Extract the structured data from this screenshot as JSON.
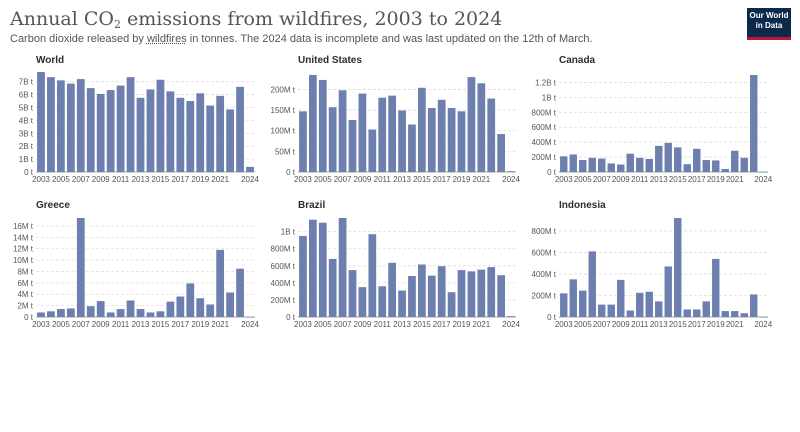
{
  "header": {
    "title_pre": "Annual CO",
    "title_sub": "2",
    "title_post": " emissions from wildfires, 2003 to 2024",
    "subtitle_pre": "Carbon dioxide released by ",
    "subtitle_link": "wildfires",
    "subtitle_post": " in tonnes. The 2024 data is incomplete and was last updated on the 12th of March.",
    "logo_line1": "Our World",
    "logo_line2": "in Data"
  },
  "colors": {
    "bar": "#6d7fae",
    "grid": "#dddddd",
    "axis": "#888888"
  },
  "chart_data": [
    {
      "type": "bar",
      "title": "World",
      "categories": [
        "2003",
        "2004",
        "2005",
        "2006",
        "2007",
        "2008",
        "2009",
        "2010",
        "2011",
        "2012",
        "2013",
        "2014",
        "2015",
        "2016",
        "2017",
        "2018",
        "2019",
        "2020",
        "2021",
        "2022",
        "2023",
        "2024"
      ],
      "values": [
        7750000000.0,
        7350000000.0,
        7100000000.0,
        6850000000.0,
        7200000000.0,
        6500000000.0,
        6050000000.0,
        6350000000.0,
        6700000000.0,
        7350000000.0,
        5750000000.0,
        6400000000.0,
        7150000000.0,
        6250000000.0,
        5750000000.0,
        5500000000.0,
        6100000000.0,
        5150000000.0,
        5900000000.0,
        4850000000.0,
        6600000000.0,
        400000000.0
      ],
      "yticks": [
        0,
        1000000000.0,
        2000000000.0,
        3000000000.0,
        4000000000.0,
        5000000000.0,
        6000000000.0,
        7000000000.0
      ],
      "ytick_labels": [
        "0 t",
        "1B t",
        "2B t",
        "3B t",
        "4B t",
        "5B t",
        "6B t",
        "7B t"
      ],
      "ylim": [
        0,
        7750000000.0
      ],
      "xtick_labels": [
        "2003",
        "2005",
        "2007",
        "2009",
        "2011",
        "2013",
        "2015",
        "2017",
        "2019",
        "2021",
        "2024"
      ]
    },
    {
      "type": "bar",
      "title": "United States",
      "categories": [
        "2003",
        "2004",
        "2005",
        "2006",
        "2007",
        "2008",
        "2009",
        "2010",
        "2011",
        "2012",
        "2013",
        "2014",
        "2015",
        "2016",
        "2017",
        "2018",
        "2019",
        "2020",
        "2021",
        "2022",
        "2023",
        "2024"
      ],
      "values": [
        147000000.0,
        235000000.0,
        223000000.0,
        157000000.0,
        198000000.0,
        126000000.0,
        190000000.0,
        103000000.0,
        180000000.0,
        185000000.0,
        149000000.0,
        115000000.0,
        204000000.0,
        155000000.0,
        175000000.0,
        155000000.0,
        147000000.0,
        230000000.0,
        215000000.0,
        178000000.0,
        92000000.0,
        2000000.0
      ],
      "yticks": [
        0,
        50000000.0,
        100000000.0,
        150000000.0,
        200000000.0
      ],
      "ytick_labels": [
        "0 t",
        "50M t",
        "100M t",
        "150M t",
        "200M t"
      ],
      "ylim": [
        0,
        235000000.0
      ],
      "xtick_labels": [
        "2003",
        "2005",
        "2007",
        "2009",
        "2011",
        "2013",
        "2015",
        "2017",
        "2019",
        "2021",
        "2024"
      ]
    },
    {
      "type": "bar",
      "title": "Canada",
      "categories": [
        "2003",
        "2004",
        "2005",
        "2006",
        "2007",
        "2008",
        "2009",
        "2010",
        "2011",
        "2012",
        "2013",
        "2014",
        "2015",
        "2016",
        "2017",
        "2018",
        "2019",
        "2020",
        "2021",
        "2022",
        "2023",
        "2024"
      ],
      "values": [
        210000000.0,
        235000000.0,
        160000000.0,
        190000000.0,
        180000000.0,
        115000000.0,
        100000000.0,
        245000000.0,
        190000000.0,
        175000000.0,
        350000000.0,
        390000000.0,
        330000000.0,
        105000000.0,
        310000000.0,
        160000000.0,
        155000000.0,
        40000000.0,
        285000000.0,
        190000000.0,
        1300000000.0,
        1000000.0
      ],
      "yticks": [
        0,
        200000000.0,
        400000000.0,
        600000000.0,
        800000000.0,
        1000000000.0,
        1200000000.0
      ],
      "ytick_labels": [
        "0 t",
        "200M t",
        "400M t",
        "600M t",
        "800M t",
        "1B t",
        "1.2B t"
      ],
      "ylim": [
        0,
        1300000000.0
      ],
      "xtick_labels": [
        "2003",
        "2005",
        "2007",
        "2009",
        "2011",
        "2013",
        "2015",
        "2017",
        "2019",
        "2021",
        "2024"
      ]
    },
    {
      "type": "bar",
      "title": "Greece",
      "categories": [
        "2003",
        "2004",
        "2005",
        "2006",
        "2007",
        "2008",
        "2009",
        "2010",
        "2011",
        "2012",
        "2013",
        "2014",
        "2015",
        "2016",
        "2017",
        "2018",
        "2019",
        "2020",
        "2021",
        "2022",
        "2023",
        "2024"
      ],
      "values": [
        800000.0,
        1000000.0,
        1400000.0,
        1500000.0,
        17400000.0,
        1900000.0,
        2800000.0,
        800000.0,
        1400000.0,
        2900000.0,
        1400000.0,
        800000.0,
        1000000.0,
        2700000.0,
        3600000.0,
        5900000.0,
        3300000.0,
        2200000.0,
        11800000.0,
        4300000.0,
        8500000.0,
        10000.0
      ],
      "yticks": [
        0,
        2000000.0,
        4000000.0,
        6000000.0,
        8000000.0,
        10000000.0,
        12000000.0,
        14000000.0,
        16000000.0
      ],
      "ytick_labels": [
        "0 t",
        "2M t",
        "4M t",
        "6M t",
        "8M t",
        "10M t",
        "12M t",
        "14M t",
        "16M t"
      ],
      "ylim": [
        0,
        17400000.0
      ],
      "xtick_labels": [
        "2003",
        "2005",
        "2007",
        "2009",
        "2011",
        "2013",
        "2015",
        "2017",
        "2019",
        "2021",
        "2024"
      ]
    },
    {
      "type": "bar",
      "title": "Brazil",
      "categories": [
        "2003",
        "2004",
        "2005",
        "2006",
        "2007",
        "2008",
        "2009",
        "2010",
        "2011",
        "2012",
        "2013",
        "2014",
        "2015",
        "2016",
        "2017",
        "2018",
        "2019",
        "2020",
        "2021",
        "2022",
        "2023",
        "2024"
      ],
      "values": [
        950000000.0,
        1140000000.0,
        1105000000.0,
        680000000.0,
        1160000000.0,
        550000000.0,
        350000000.0,
        970000000.0,
        360000000.0,
        635000000.0,
        310000000.0,
        480000000.0,
        615000000.0,
        485000000.0,
        595000000.0,
        290000000.0,
        550000000.0,
        535000000.0,
        555000000.0,
        585000000.0,
        490000000.0,
        10000000.0
      ],
      "yticks": [
        0,
        200000000.0,
        400000000.0,
        600000000.0,
        800000000.0,
        1000000000.0
      ],
      "ytick_labels": [
        "0 t",
        "200M t",
        "400M t",
        "600M t",
        "800M t",
        "1B t"
      ],
      "ylim": [
        0,
        1160000000.0
      ],
      "xtick_labels": [
        "2003",
        "2005",
        "2007",
        "2009",
        "2011",
        "2013",
        "2015",
        "2017",
        "2019",
        "2021",
        "2024"
      ]
    },
    {
      "type": "bar",
      "title": "Indonesia",
      "categories": [
        "2003",
        "2004",
        "2005",
        "2006",
        "2007",
        "2008",
        "2009",
        "2010",
        "2011",
        "2012",
        "2013",
        "2014",
        "2015",
        "2016",
        "2017",
        "2018",
        "2019",
        "2020",
        "2021",
        "2022",
        "2023",
        "2024"
      ],
      "values": [
        220000000.0,
        350000000.0,
        245000000.0,
        610000000.0,
        115000000.0,
        115000000.0,
        345000000.0,
        60000000.0,
        225000000.0,
        235000000.0,
        145000000.0,
        470000000.0,
        920000000.0,
        70000000.0,
        70000000.0,
        145000000.0,
        540000000.0,
        55000000.0,
        55000000.0,
        35000000.0,
        210000000.0,
        1000000.0
      ],
      "yticks": [
        0,
        200000000.0,
        400000000.0,
        600000000.0,
        800000000.0
      ],
      "ytick_labels": [
        "0 t",
        "200M t",
        "400M t",
        "600M t",
        "800M t"
      ],
      "ylim": [
        0,
        920000000.0
      ],
      "xtick_labels": [
        "2003",
        "2005",
        "2007",
        "2009",
        "2011",
        "2013",
        "2015",
        "2017",
        "2019",
        "2021",
        "2024"
      ]
    }
  ]
}
